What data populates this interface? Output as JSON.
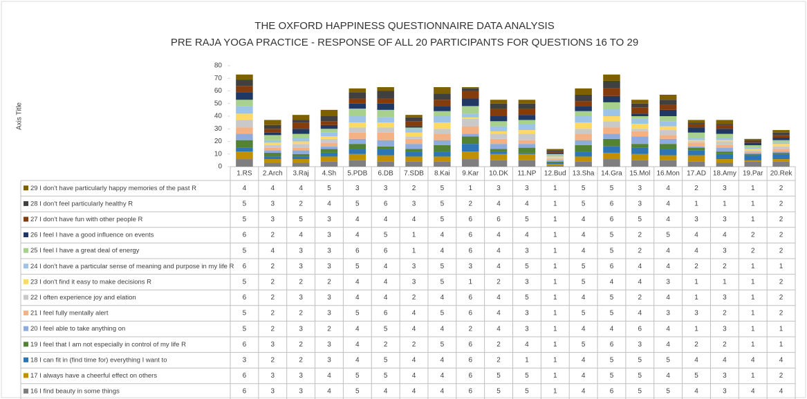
{
  "chart_data": {
    "type": "stacked_bar",
    "title": "THE OXFORD HAPPINESS QUESTIONNAIRE DATA ANALYSIS",
    "subtitle": "PRE RAJA YOGA PRACTICE - RESPONSE OF ALL 20 PARTICIPANTS FOR QUESTIONS 16 TO 29",
    "y_axis_title": "Axis Title",
    "categories": [
      "1.RS",
      "2.Arch",
      "3.Raj",
      "4.Sh",
      "5.PDB",
      "6.DB",
      "7.SDB",
      "8.Kai",
      "9.Kar",
      "10.DK",
      "11.NP",
      "12.Bud",
      "13.Sha",
      "14.Gra",
      "15.Mol",
      "16.Mon",
      "17.AD",
      "18.Amy",
      "19.Par",
      "20.Rek"
    ],
    "ylim": [
      0,
      80
    ],
    "yticks": [
      0,
      10,
      20,
      30,
      40,
      50,
      60,
      70,
      80
    ],
    "grid": false,
    "series": [
      {
        "name": "29 I don't have particularly happy memories of the past R",
        "color": "#7f6000",
        "values": [
          4,
          4,
          4,
          5,
          3,
          3,
          2,
          5,
          1,
          3,
          3,
          1,
          5,
          5,
          3,
          4,
          2,
          3,
          1,
          2
        ]
      },
      {
        "name": "28 I don't feel particularly healthy R",
        "color": "#404040",
        "values": [
          5,
          3,
          2,
          4,
          5,
          6,
          3,
          5,
          2,
          4,
          4,
          1,
          5,
          6,
          3,
          4,
          1,
          1,
          1,
          2
        ]
      },
      {
        "name": "27 I don't have fun with other people R",
        "color": "#843c0c",
        "values": [
          5,
          3,
          5,
          3,
          4,
          4,
          4,
          5,
          6,
          6,
          5,
          1,
          4,
          6,
          5,
          4,
          3,
          3,
          1,
          2
        ]
      },
      {
        "name": "26 I feel I have a good influence on events",
        "color": "#1f3864",
        "values": [
          6,
          2,
          4,
          3,
          4,
          5,
          1,
          4,
          6,
          4,
          4,
          1,
          4,
          5,
          2,
          5,
          4,
          4,
          2,
          2
        ]
      },
      {
        "name": "25 I feel I have a great deal of energy",
        "color": "#a9d18e",
        "values": [
          5,
          4,
          3,
          3,
          6,
          6,
          1,
          4,
          6,
          4,
          3,
          1,
          4,
          5,
          2,
          4,
          4,
          3,
          2,
          2
        ]
      },
      {
        "name": "24 I don't have a particular sense of meaning and purpose in my life R",
        "color": "#9dc3e6",
        "values": [
          6,
          2,
          3,
          3,
          5,
          4,
          3,
          5,
          3,
          4,
          5,
          1,
          5,
          6,
          4,
          4,
          2,
          2,
          1,
          1
        ]
      },
      {
        "name": "23 I don't find it easy to make decisions R",
        "color": "#ffd966",
        "values": [
          5,
          2,
          2,
          2,
          4,
          4,
          3,
          5,
          1,
          2,
          3,
          1,
          5,
          4,
          4,
          3,
          1,
          1,
          1,
          2
        ]
      },
      {
        "name": "22 I often experience joy and elation",
        "color": "#c9c9c9",
        "values": [
          6,
          2,
          3,
          3,
          4,
          4,
          2,
          4,
          6,
          4,
          5,
          1,
          4,
          5,
          2,
          4,
          1,
          3,
          1,
          2
        ]
      },
      {
        "name": "21 I feel fully mentally alert",
        "color": "#f4b183",
        "values": [
          5,
          2,
          2,
          3,
          5,
          6,
          4,
          5,
          6,
          4,
          3,
          1,
          5,
          5,
          4,
          3,
          3,
          2,
          1,
          2
        ]
      },
      {
        "name": "20 I feel able to take anything on",
        "color": "#8faadc",
        "values": [
          5,
          2,
          3,
          2,
          4,
          5,
          4,
          4,
          2,
          4,
          3,
          1,
          4,
          4,
          6,
          4,
          1,
          3,
          1,
          1
        ]
      },
      {
        "name": "19 I feel that I am not especially in control of my life R",
        "color": "#548235",
        "values": [
          6,
          3,
          2,
          3,
          4,
          2,
          2,
          5,
          6,
          2,
          4,
          1,
          5,
          6,
          3,
          4,
          2,
          2,
          1,
          1
        ]
      },
      {
        "name": "18 I can fit in (find time for) everything I want to",
        "color": "#2e75b6",
        "values": [
          3,
          2,
          2,
          3,
          4,
          5,
          4,
          4,
          6,
          2,
          1,
          1,
          4,
          5,
          5,
          5,
          4,
          4,
          4,
          4
        ]
      },
      {
        "name": "17 I always have a cheerful effect on others",
        "color": "#bf9000",
        "values": [
          6,
          3,
          3,
          4,
          5,
          5,
          4,
          4,
          6,
          5,
          5,
          1,
          4,
          5,
          5,
          4,
          5,
          3,
          1,
          2
        ]
      },
      {
        "name": "16 I find beauty in some things",
        "color": "#7f7f7f",
        "values": [
          6,
          3,
          3,
          4,
          5,
          4,
          4,
          4,
          6,
          5,
          5,
          1,
          4,
          6,
          5,
          5,
          4,
          3,
          4,
          4
        ]
      }
    ]
  }
}
